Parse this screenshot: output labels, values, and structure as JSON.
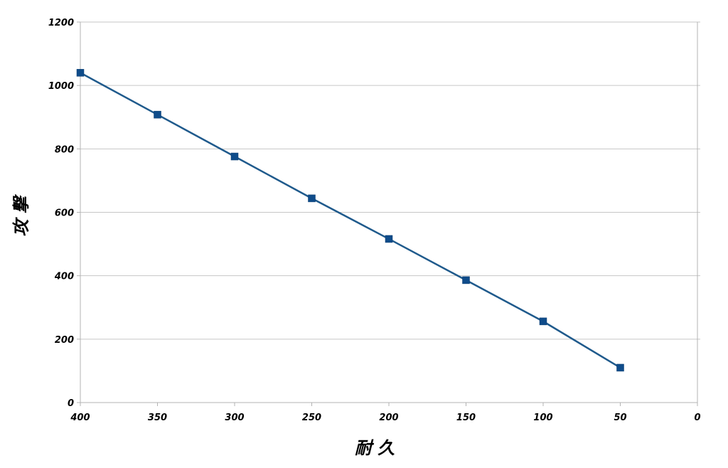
{
  "chart_data": {
    "type": "line",
    "xlabel": "耐 久",
    "ylabel": "攻 撃",
    "xlim": [
      400,
      0
    ],
    "ylim": [
      0,
      1200
    ],
    "x_reversed": true,
    "x_ticks": [
      400,
      350,
      300,
      250,
      200,
      150,
      100,
      50,
      0
    ],
    "y_ticks": [
      0,
      200,
      400,
      600,
      800,
      1000,
      1200
    ],
    "grid": {
      "horizontal": true,
      "vertical": false
    },
    "series": [
      {
        "color": "#1F5A8C",
        "marker": "square",
        "x": [
          400,
          350,
          300,
          250,
          200,
          150,
          100,
          50
        ],
        "y": [
          1040,
          908,
          776,
          644,
          516,
          386,
          256,
          110
        ]
      }
    ]
  }
}
